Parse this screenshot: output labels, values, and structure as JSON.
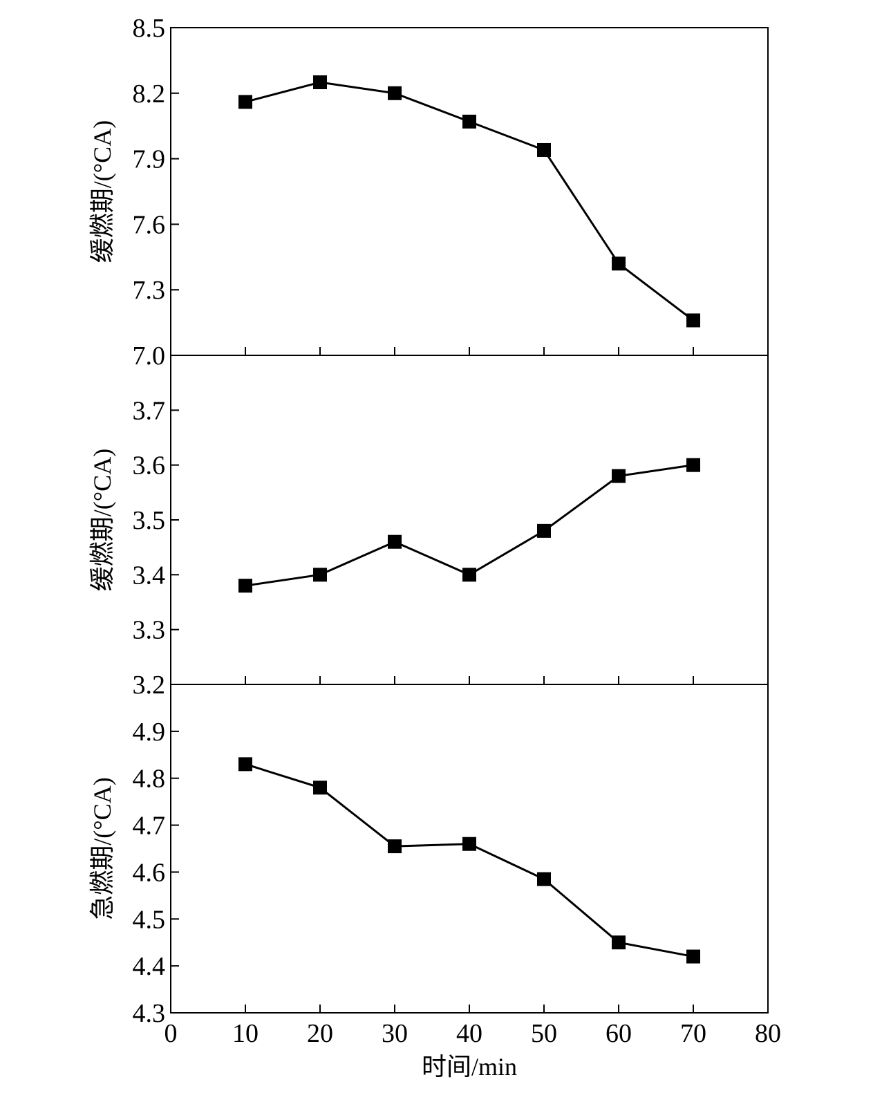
{
  "chart_data": [
    {
      "type": "line",
      "ylabel": "缓燃期/(°CA)",
      "xlabel": "",
      "ylim": [
        7.0,
        8.5
      ],
      "yticks": [
        7.0,
        7.3,
        7.6,
        7.9,
        8.2,
        8.5
      ],
      "ytick_labels": [
        "7.0",
        "7.3",
        "7.6",
        "7.9",
        "8.2",
        "8.5"
      ],
      "xlim": [
        0,
        80
      ],
      "x": [
        10,
        20,
        30,
        40,
        50,
        60,
        70
      ],
      "series": [
        {
          "values": [
            8.16,
            8.25,
            8.2,
            8.07,
            7.94,
            7.42,
            7.16
          ],
          "marker": "filled-square",
          "color": "#000000"
        }
      ],
      "grid": false
    },
    {
      "type": "line",
      "ylabel": "缓燃期/(°CA)",
      "xlabel": "",
      "ylim": [
        3.2,
        3.8
      ],
      "yticks": [
        3.2,
        3.3,
        3.4,
        3.5,
        3.6,
        3.7
      ],
      "ytick_labels": [
        "3.2",
        "3.3",
        "3.4",
        "3.5",
        "3.6",
        "3.7"
      ],
      "xlim": [
        0,
        80
      ],
      "x": [
        10,
        20,
        30,
        40,
        50,
        60,
        70
      ],
      "series": [
        {
          "values": [
            3.38,
            3.4,
            3.46,
            3.4,
            3.48,
            3.58,
            3.6
          ],
          "marker": "filled-square",
          "color": "#000000"
        }
      ],
      "grid": false
    },
    {
      "type": "line",
      "ylabel": "急燃期/(°CA)",
      "xlabel": "时间/min",
      "ylim": [
        4.3,
        5.0
      ],
      "yticks": [
        4.3,
        4.4,
        4.5,
        4.6,
        4.7,
        4.8,
        4.9
      ],
      "ytick_labels": [
        "4.3",
        "4.4",
        "4.5",
        "4.6",
        "4.7",
        "4.8",
        "4.9"
      ],
      "xlim": [
        0,
        80
      ],
      "xticks": [
        0,
        10,
        20,
        30,
        40,
        50,
        60,
        70,
        80
      ],
      "xtick_labels": [
        "0",
        "10",
        "20",
        "30",
        "40",
        "50",
        "60",
        "70",
        "80"
      ],
      "x": [
        10,
        20,
        30,
        40,
        50,
        60,
        70
      ],
      "series": [
        {
          "values": [
            4.83,
            4.78,
            4.655,
            4.66,
            4.585,
            4.45,
            4.42
          ],
          "marker": "filled-square",
          "color": "#000000"
        }
      ],
      "grid": false
    }
  ]
}
